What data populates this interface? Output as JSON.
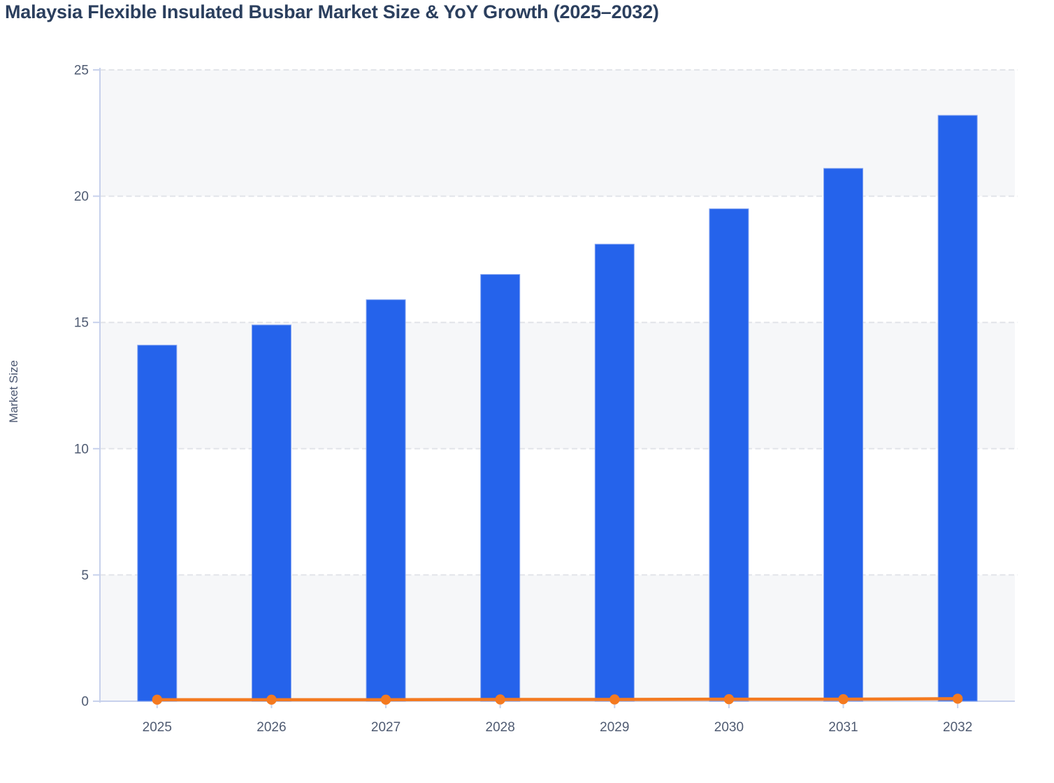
{
  "title": "Malaysia Flexible Insulated Busbar Market Size & YoY Growth (2025–2032)",
  "colors": {
    "title_text": "#2b3f5e",
    "axis_line": "#c7d1ec",
    "grid_line": "#e2e4e9",
    "band_fill": "#f6f7f9",
    "tick_label": "#4f5b72",
    "axis_title_text": "#4a5670",
    "bar_fill": "#2563eb",
    "bar_stroke": "#86a5f1",
    "line_color": "#f47a20"
  },
  "chart_data": {
    "type": "bar",
    "subtype": "combo-bar-line",
    "title": "Malaysia Flexible Insulated Busbar Market Size & YoY Growth (2025–2032)",
    "categories": [
      "2025",
      "2026",
      "2027",
      "2028",
      "2029",
      "2030",
      "2031",
      "2032"
    ],
    "series": [
      {
        "name": "Market Size",
        "type": "bar",
        "values": [
          14.1,
          14.9,
          15.9,
          16.9,
          18.1,
          19.5,
          21.1,
          23.2
        ]
      },
      {
        "name": "YoY Growth",
        "type": "line",
        "values": [
          0.06,
          0.06,
          0.06,
          0.07,
          0.07,
          0.08,
          0.08,
          0.1
        ]
      }
    ],
    "xlabel": "",
    "ylabel": "Market Size",
    "ylim": [
      0,
      25
    ],
    "yticks": [
      0,
      5,
      10,
      15,
      20,
      25
    ],
    "grid": "horizontal-dashed",
    "background_bands": "alternating 5-unit shaded bands (0-5, 10-15, 20-25)",
    "legend": "none"
  }
}
